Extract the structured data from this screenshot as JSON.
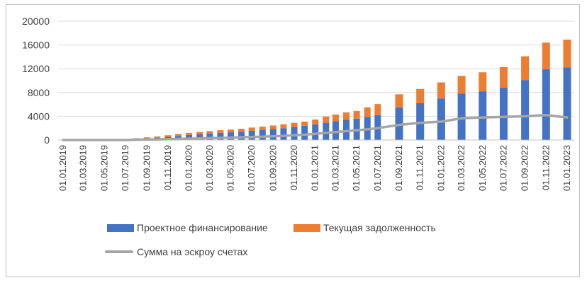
{
  "chart_data": {
    "type": "bar",
    "stacked": true,
    "categories": [
      "01.01.2019",
      "01.02.2019",
      "01.03.2019",
      "01.04.2019",
      "01.05.2019",
      "01.06.2019",
      "01.07.2019",
      "01.08.2019",
      "01.09.2019",
      "01.10.2019",
      "01.11.2019",
      "01.12.2019",
      "01.01.2020",
      "01.02.2020",
      "01.03.2020",
      "01.04.2020",
      "01.05.2020",
      "01.06.2020",
      "01.07.2020",
      "01.08.2020",
      "01.09.2020",
      "01.10.2020",
      "01.11.2020",
      "01.12.2020",
      "01.01.2021",
      "01.02.2021",
      "01.03.2021",
      "01.04.2021",
      "01.05.2021",
      "01.06.2021",
      "01.07.2021",
      "01.09.2021",
      "01.11.2021",
      "01.01.2022",
      "01.03.2022",
      "01.05.2022",
      "01.07.2022",
      "01.09.2022",
      "01.11.2022",
      "01.01.2023"
    ],
    "x_tick_labels": [
      "01.01.2019",
      "01.03.2019",
      "01.05.2019",
      "01.07.2019",
      "01.09.2019",
      "01.11.2019",
      "01.01.2020",
      "01.03.2020",
      "01.05.2020",
      "01.07.2020",
      "01.09.2020",
      "01.11.2020",
      "01.01.2021",
      "01.03.2021",
      "01.05.2021",
      "01.07.2021",
      "01.09.2021",
      "01.11.2021",
      "01.01.2022",
      "01.03.2022",
      "01.05.2022",
      "01.07.2022",
      "01.09.2022",
      "01.11.2022",
      "01.01.2023"
    ],
    "series": [
      {
        "name": "Проектное финансирование",
        "kind": "bar",
        "color": "#4472C4",
        "values": [
          0,
          0,
          0,
          0,
          0,
          0,
          0,
          200,
          300,
          400,
          550,
          700,
          850,
          950,
          1100,
          1200,
          1300,
          1400,
          1550,
          1700,
          1850,
          2000,
          2200,
          2400,
          2650,
          2900,
          3150,
          3400,
          3600,
          3900,
          4200,
          5500,
          6200,
          7000,
          7800,
          8200,
          8800,
          10100,
          11900,
          12200
        ]
      },
      {
        "name": "Текущая задолженность",
        "kind": "bar",
        "color": "#ED7D31",
        "values": [
          0,
          0,
          0,
          0,
          0,
          0,
          0,
          100,
          150,
          200,
          250,
          300,
          350,
          400,
          400,
          450,
          450,
          500,
          550,
          550,
          600,
          650,
          700,
          700,
          800,
          1050,
          1150,
          1250,
          1300,
          1600,
          1850,
          2200,
          2400,
          2700,
          3000,
          3200,
          3500,
          4000,
          4500,
          4700
        ]
      },
      {
        "name": "Сумма на эскроу счетах",
        "kind": "line",
        "color": "#A5A5A5",
        "values": [
          0,
          0,
          0,
          0,
          0,
          0,
          0,
          50,
          80,
          110,
          150,
          190,
          230,
          270,
          320,
          360,
          410,
          460,
          510,
          570,
          630,
          700,
          800,
          900,
          1050,
          1200,
          1350,
          1500,
          1650,
          1800,
          2000,
          2550,
          2900,
          3100,
          3650,
          3800,
          3900,
          4000,
          4200,
          3800
        ]
      }
    ],
    "y_ticks": [
      0,
      4000,
      8000,
      12000,
      16000,
      20000
    ],
    "ylim": [
      0,
      20000
    ],
    "grid": "horizontal",
    "legend_placement": "bottom"
  }
}
